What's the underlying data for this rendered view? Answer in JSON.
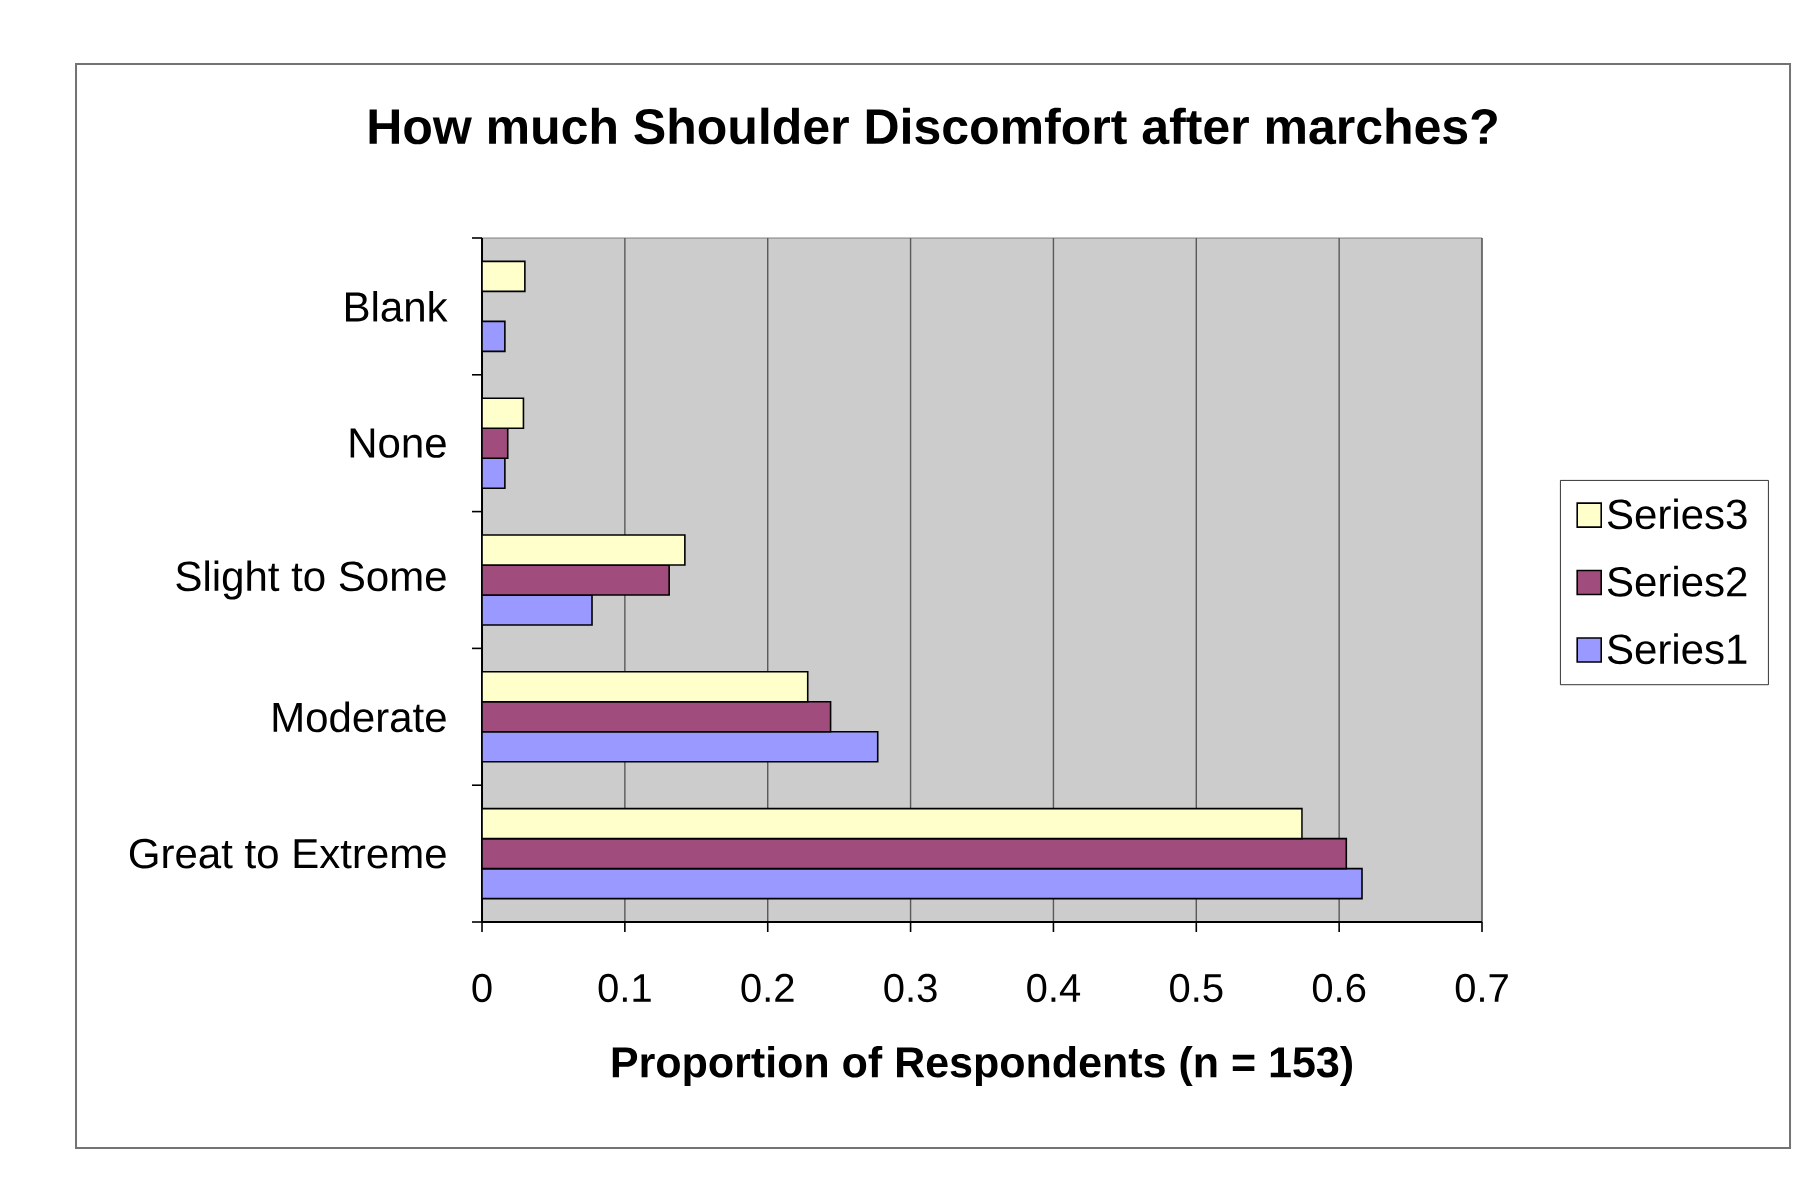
{
  "chart_data": {
    "type": "bar",
    "orientation": "horizontal",
    "title": "How much Shoulder Discomfort after marches?",
    "xlabel": "Proportion of Respondents (n = 153)",
    "categories": [
      "Blank",
      "None",
      "Slight to Some",
      "Moderate",
      "Great to Extreme"
    ],
    "series": [
      {
        "name": "Series1",
        "color": "#9999ff",
        "values": [
          0.016,
          0.016,
          0.077,
          0.277,
          0.616
        ]
      },
      {
        "name": "Series2",
        "color": "#a04c7c",
        "values": [
          0,
          0.018,
          0.131,
          0.244,
          0.605
        ]
      },
      {
        "name": "Series3",
        "color": "#ffffcc",
        "values": [
          0.03,
          0.029,
          0.142,
          0.228,
          0.574
        ]
      }
    ],
    "xlim": [
      0,
      0.7
    ],
    "xticks": [
      0,
      0.1,
      0.2,
      0.3,
      0.4,
      0.5,
      0.6,
      0.7
    ],
    "grid": "x",
    "legend": "right"
  }
}
